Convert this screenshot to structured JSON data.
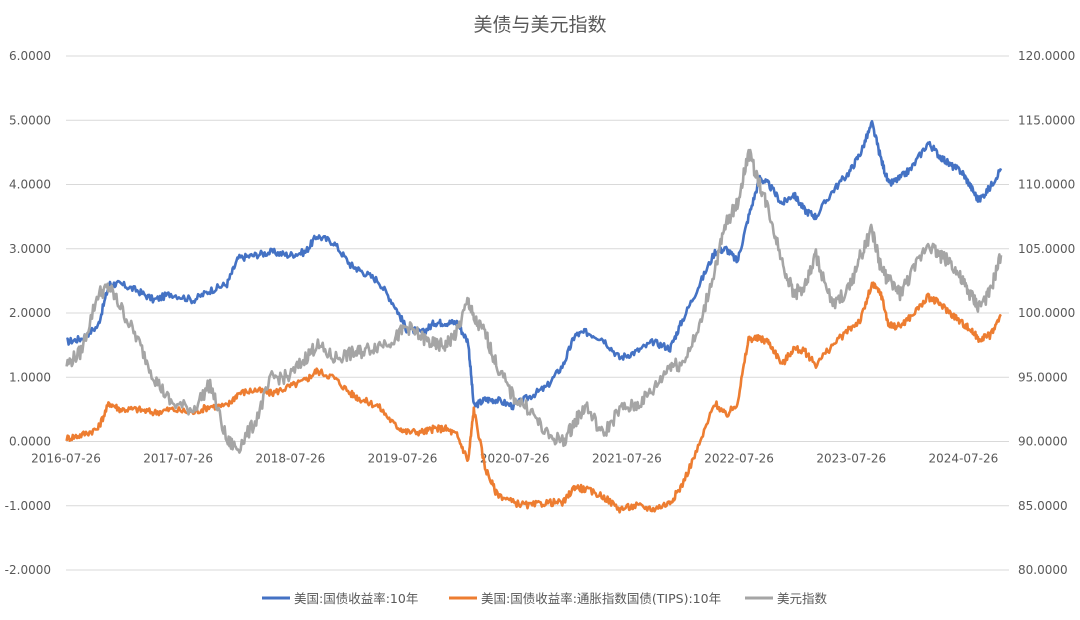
{
  "chart_data": {
    "type": "line",
    "title": "美债与美元指数",
    "x_tick_labels": [
      "2016-07-26",
      "2017-07-26",
      "2018-07-26",
      "2019-07-26",
      "2020-07-26",
      "2021-07-26",
      "2022-07-26",
      "2023-07-26",
      "2024-07-26"
    ],
    "y_left": {
      "ylim": [
        -2,
        6
      ],
      "ticks": [
        "-2.0000",
        "-1.0000",
        "0.0000",
        "1.0000",
        "2.0000",
        "3.0000",
        "4.0000",
        "5.0000",
        "6.0000"
      ]
    },
    "y_right": {
      "ylim": [
        80,
        120
      ],
      "ticks": [
        "80.0000",
        "85.0000",
        "90.0000",
        "95.0000",
        "100.0000",
        "105.0000",
        "110.0000",
        "115.0000",
        "120.0000"
      ]
    },
    "grid": true,
    "legend_position": "bottom",
    "series": [
      {
        "name": "美国:国债收益率:10年",
        "axis": "left",
        "color": "#4472C4",
        "x": [
          2016.57,
          2016.7,
          2016.85,
          2016.95,
          2017.05,
          2017.2,
          2017.35,
          2017.5,
          2017.7,
          2017.85,
          2018.0,
          2018.1,
          2018.25,
          2018.4,
          2018.55,
          2018.7,
          2018.8,
          2018.95,
          2019.1,
          2019.2,
          2019.35,
          2019.5,
          2019.6,
          2019.75,
          2019.85,
          2019.95,
          2020.05,
          2020.15,
          2020.2,
          2020.3,
          2020.4,
          2020.55,
          2020.7,
          2020.85,
          2021.0,
          2021.1,
          2021.2,
          2021.35,
          2021.5,
          2021.65,
          2021.8,
          2021.95,
          2022.05,
          2022.2,
          2022.35,
          2022.45,
          2022.55,
          2022.65,
          2022.75,
          2022.83,
          2022.95,
          2023.05,
          2023.15,
          2023.25,
          2023.4,
          2023.55,
          2023.65,
          2023.75,
          2023.83,
          2023.9,
          2024.0,
          2024.1,
          2024.25,
          2024.35,
          2024.45,
          2024.55,
          2024.62,
          2024.7,
          2024.8,
          2024.9
        ],
        "y": [
          1.55,
          1.6,
          1.8,
          2.45,
          2.45,
          2.35,
          2.2,
          2.3,
          2.2,
          2.35,
          2.45,
          2.85,
          2.9,
          2.95,
          2.9,
          2.95,
          3.2,
          3.1,
          2.75,
          2.65,
          2.5,
          2.1,
          1.75,
          1.7,
          1.85,
          1.85,
          1.85,
          1.55,
          0.55,
          0.65,
          0.65,
          0.55,
          0.7,
          0.85,
          1.2,
          1.65,
          1.7,
          1.6,
          1.3,
          1.4,
          1.55,
          1.45,
          1.85,
          2.4,
          2.95,
          3.0,
          2.8,
          3.5,
          4.1,
          4.0,
          3.7,
          3.85,
          3.6,
          3.5,
          3.9,
          4.2,
          4.5,
          4.95,
          4.4,
          4.0,
          4.1,
          4.25,
          4.65,
          4.45,
          4.3,
          4.2,
          4.0,
          3.75,
          3.95,
          4.25
        ]
      },
      {
        "name": "美国:国债收益率:通胀指数国债(TIPS):10年",
        "axis": "left",
        "color": "#ED7D31",
        "x": [
          2016.57,
          2016.7,
          2016.85,
          2016.95,
          2017.05,
          2017.2,
          2017.35,
          2017.5,
          2017.7,
          2017.85,
          2018.0,
          2018.1,
          2018.25,
          2018.4,
          2018.55,
          2018.7,
          2018.8,
          2018.95,
          2019.1,
          2019.2,
          2019.35,
          2019.5,
          2019.6,
          2019.75,
          2019.85,
          2019.95,
          2020.05,
          2020.15,
          2020.2,
          2020.3,
          2020.4,
          2020.55,
          2020.7,
          2020.85,
          2021.0,
          2021.1,
          2021.2,
          2021.35,
          2021.5,
          2021.65,
          2021.8,
          2021.95,
          2022.05,
          2022.2,
          2022.35,
          2022.45,
          2022.55,
          2022.65,
          2022.75,
          2022.83,
          2022.95,
          2023.05,
          2023.15,
          2023.25,
          2023.4,
          2023.55,
          2023.65,
          2023.75,
          2023.83,
          2023.9,
          2024.0,
          2024.1,
          2024.25,
          2024.35,
          2024.45,
          2024.55,
          2024.62,
          2024.7,
          2024.8,
          2024.9
        ],
        "y": [
          0.05,
          0.1,
          0.2,
          0.6,
          0.5,
          0.5,
          0.45,
          0.5,
          0.45,
          0.55,
          0.55,
          0.75,
          0.8,
          0.75,
          0.85,
          0.95,
          1.1,
          1.0,
          0.75,
          0.65,
          0.55,
          0.25,
          0.15,
          0.15,
          0.2,
          0.2,
          0.1,
          -0.3,
          0.5,
          -0.4,
          -0.8,
          -0.95,
          -1.0,
          -0.95,
          -0.95,
          -0.7,
          -0.75,
          -0.85,
          -1.05,
          -1.0,
          -1.05,
          -0.95,
          -0.7,
          -0.1,
          0.6,
          0.4,
          0.6,
          1.6,
          1.6,
          1.55,
          1.2,
          1.45,
          1.4,
          1.2,
          1.5,
          1.75,
          1.9,
          2.45,
          2.3,
          1.8,
          1.8,
          1.95,
          2.25,
          2.15,
          2.0,
          1.85,
          1.75,
          1.6,
          1.65,
          1.95
        ]
      },
      {
        "name": "美元指数",
        "axis": "right",
        "color": "#A5A5A5",
        "x": [
          2016.57,
          2016.7,
          2016.85,
          2016.95,
          2017.05,
          2017.2,
          2017.35,
          2017.5,
          2017.7,
          2017.85,
          2018.0,
          2018.1,
          2018.25,
          2018.4,
          2018.55,
          2018.7,
          2018.8,
          2018.95,
          2019.1,
          2019.2,
          2019.35,
          2019.5,
          2019.6,
          2019.75,
          2019.85,
          2019.95,
          2020.05,
          2020.15,
          2020.2,
          2020.3,
          2020.4,
          2020.55,
          2020.7,
          2020.85,
          2021.0,
          2021.1,
          2021.2,
          2021.35,
          2021.5,
          2021.65,
          2021.8,
          2021.95,
          2022.05,
          2022.2,
          2022.35,
          2022.45,
          2022.55,
          2022.65,
          2022.75,
          2022.83,
          2022.95,
          2023.05,
          2023.15,
          2023.25,
          2023.4,
          2023.55,
          2023.65,
          2023.75,
          2023.83,
          2023.9,
          2024.0,
          2024.1,
          2024.25,
          2024.35,
          2024.45,
          2024.55,
          2024.62,
          2024.7,
          2024.8,
          2024.9
        ],
        "y": [
          96.0,
          97.0,
          101.5,
          102.0,
          100.5,
          98.0,
          95.0,
          93.0,
          92.5,
          94.5,
          90.0,
          89.5,
          91.5,
          95.0,
          95.0,
          96.5,
          97.5,
          96.5,
          96.8,
          97.0,
          97.5,
          98.0,
          99.0,
          98.0,
          97.5,
          97.5,
          98.5,
          101.0,
          99.5,
          98.5,
          96.0,
          93.5,
          92.5,
          90.5,
          90.0,
          91.5,
          92.8,
          90.5,
          92.5,
          92.8,
          94.0,
          96.0,
          96.0,
          98.5,
          103.5,
          107.0,
          108.5,
          112.5,
          110.0,
          108.0,
          104.0,
          101.5,
          102.0,
          104.5,
          100.5,
          102.0,
          104.5,
          106.5,
          103.5,
          102.5,
          101.5,
          103.0,
          105.5,
          104.5,
          104.0,
          102.5,
          101.5,
          100.5,
          101.5,
          104.5
        ]
      }
    ]
  }
}
